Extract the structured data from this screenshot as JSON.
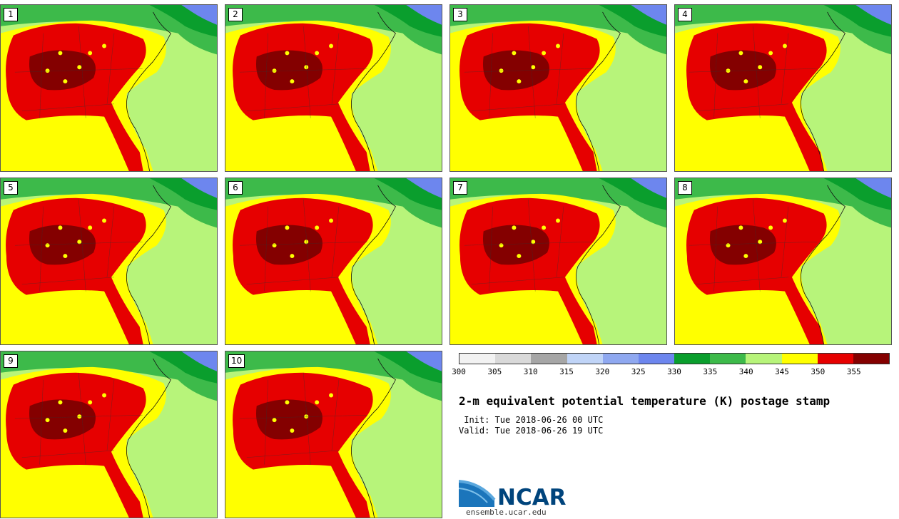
{
  "members": [
    "1",
    "2",
    "3",
    "4",
    "5",
    "6",
    "7",
    "8",
    "9",
    "10"
  ],
  "colorbar": {
    "colors": [
      "#f2f2f2",
      "#d9d9d9",
      "#a6a6a6",
      "#c0d4f7",
      "#8fa8f0",
      "#6d86ee",
      "#0a9e2d",
      "#3dba4a",
      "#b7f47a",
      "#ffff00",
      "#e60000",
      "#840000"
    ],
    "ticks": [
      "300",
      "305",
      "310",
      "315",
      "320",
      "325",
      "330",
      "335",
      "340",
      "345",
      "350",
      "355"
    ]
  },
  "title": "2-m equivalent potential temperature (K) postage stamp",
  "init": " Init: Tue 2018-06-26 00 UTC",
  "valid": "Valid: Tue 2018-06-26 19 UTC",
  "logo": {
    "name": "NCAR",
    "url": "ensemble.ucar.edu"
  },
  "map_colors": {
    "ocean": "#b7f47a",
    "warm": "#ffff00",
    "hot": "#e60000",
    "hottest": "#840000",
    "cool": "#3dba4a",
    "cooler": "#0a9e2d",
    "cold": "#6d86ee"
  }
}
